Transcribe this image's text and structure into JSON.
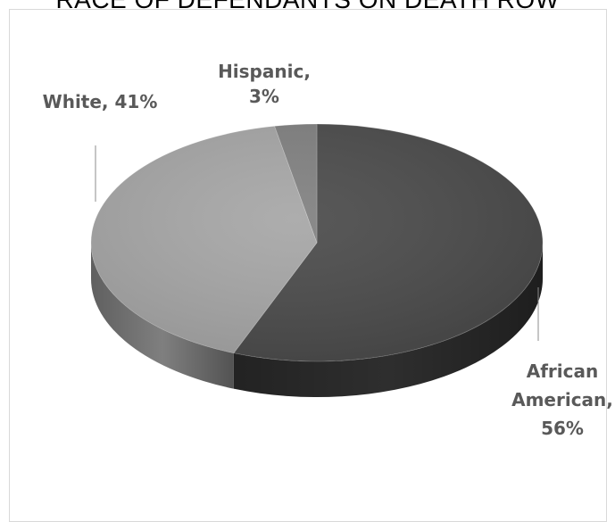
{
  "chart_data": {
    "type": "pie",
    "title": "RACE OF DEFENDANTS ON DEATH ROW",
    "slices": [
      {
        "category": "African American",
        "value": 56,
        "label_lines": [
          "African",
          "American,",
          "56%"
        ],
        "color": "#4a4a4a",
        "side_color": "#2e2e2e"
      },
      {
        "category": "White",
        "value": 41,
        "label_lines": [
          "White, 41%"
        ],
        "color": "#a6a6a6",
        "side_color": "#7f7f7f"
      },
      {
        "category": "Hispanic",
        "value": 3,
        "label_lines": [
          "Hispanic,",
          "3%"
        ],
        "color": "#808080",
        "side_color": "#5f5f5f"
      }
    ],
    "style": "3d-pie"
  }
}
